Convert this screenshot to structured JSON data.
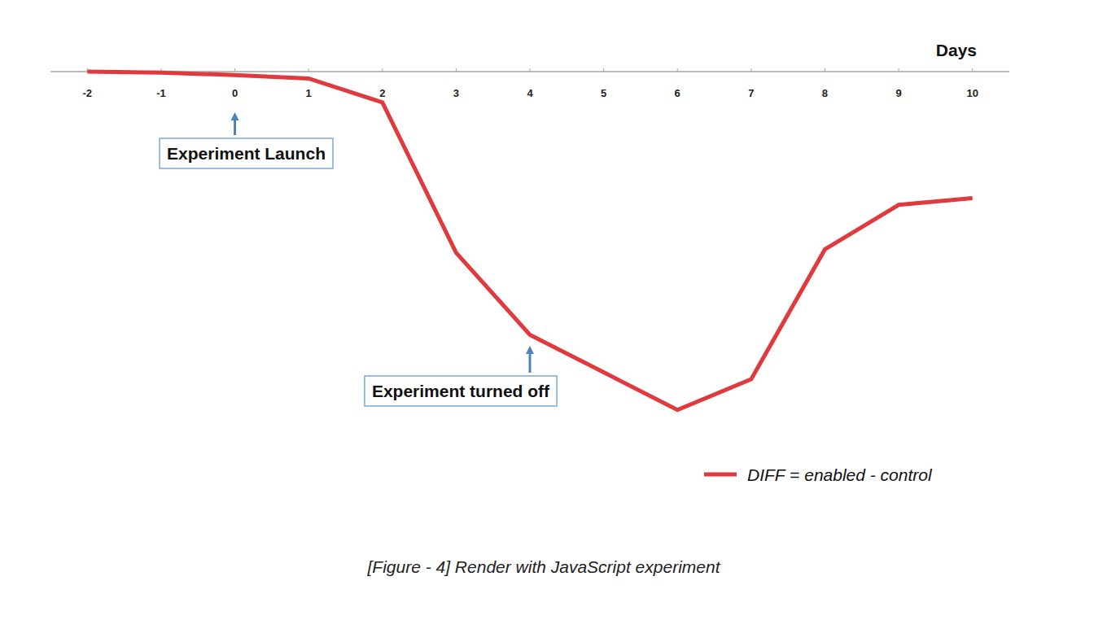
{
  "chart_data": {
    "type": "line",
    "title": "[Figure - 4] Render with JavaScript experiment",
    "x_label": "Days",
    "x": [
      -2,
      -1,
      0,
      1,
      2,
      3,
      4,
      5,
      6,
      7,
      8,
      9,
      10
    ],
    "series": [
      {
        "name": "DIFF = enabled - control",
        "color": "#e03a3e",
        "values": [
          0,
          -0.3,
          -1,
          -2,
          -9,
          -53,
          -77,
          -88,
          -99,
          -90,
          -52,
          -39,
          -37
        ]
      }
    ],
    "xlim": [
      -2.5,
      10.5
    ],
    "xticks": [
      -2,
      -1,
      0,
      1,
      2,
      3,
      4,
      5,
      6,
      7,
      8,
      9,
      10
    ],
    "ylim": [
      -110,
      0
    ],
    "tick_labels": "x",
    "legend": "bottom-right",
    "grid": false,
    "annotations": [
      {
        "text": "Experiment Launch",
        "x": 0
      },
      {
        "text": "Experiment turned off",
        "x": 4
      }
    ]
  }
}
